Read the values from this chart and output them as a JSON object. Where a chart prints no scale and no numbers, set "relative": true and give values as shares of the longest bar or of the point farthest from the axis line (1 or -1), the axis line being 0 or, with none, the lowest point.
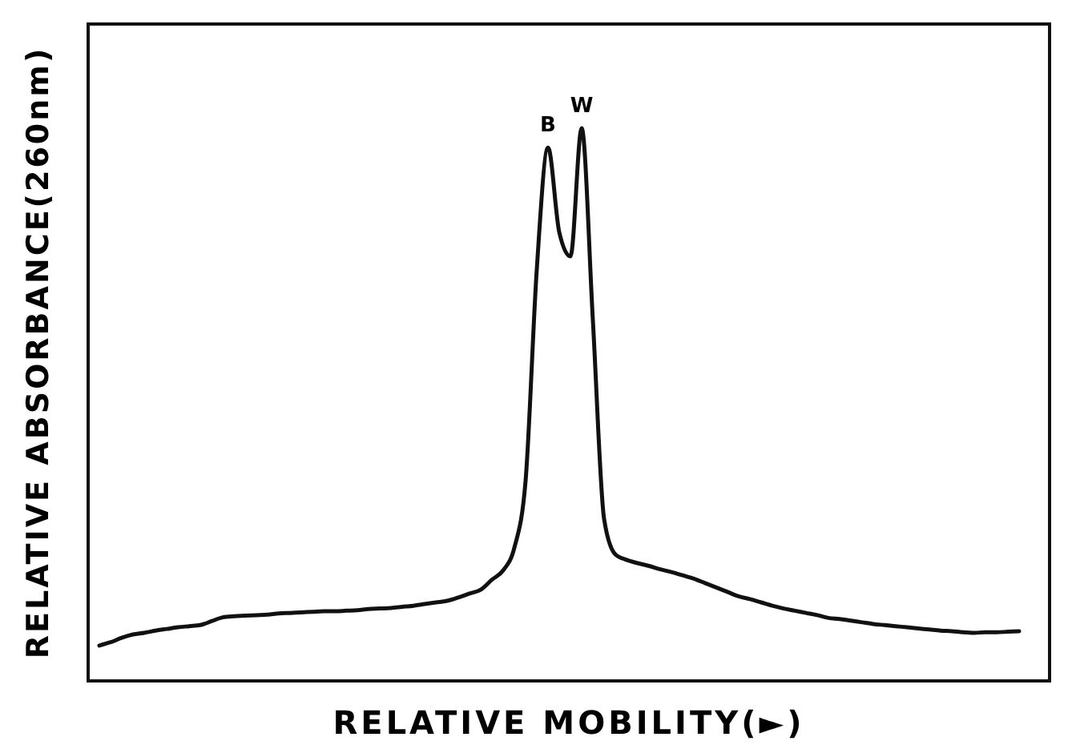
{
  "chart_data": {
    "type": "line",
    "relative": true,
    "xlabel": "RELATIVE MOBILITY(►)",
    "ylabel": "RELATIVE ABSORBANCE(260nm)",
    "categories": [
      null,
      null,
      null,
      null,
      null,
      null,
      null,
      null,
      null,
      null,
      null,
      null,
      null,
      null,
      null,
      null,
      null,
      null,
      null,
      null,
      null,
      null,
      null,
      null,
      null,
      null,
      null,
      null,
      null,
      null,
      null,
      null,
      null,
      null,
      null,
      null,
      null,
      null,
      null,
      null,
      null,
      null,
      null,
      null,
      null,
      null,
      null,
      null,
      null,
      null,
      null,
      null,
      null,
      null,
      null,
      null,
      null,
      null,
      null,
      null,
      null,
      null,
      null,
      null,
      null,
      null,
      null,
      null,
      null,
      null,
      null,
      null,
      null,
      null,
      null,
      null,
      null,
      null,
      null,
      null,
      null,
      null,
      null
    ],
    "series": [
      {
        "color": "#111111",
        "values": [
          0.064,
          0.07,
          0.078,
          0.084,
          0.087,
          0.091,
          0.094,
          0.097,
          0.099,
          0.101,
          0.108,
          0.115,
          0.117,
          0.118,
          0.119,
          0.12,
          0.122,
          0.123,
          0.124,
          0.125,
          0.126,
          0.126,
          0.127,
          0.128,
          0.13,
          0.131,
          0.132,
          0.134,
          0.136,
          0.139,
          0.142,
          0.145,
          0.151,
          0.158,
          0.165,
          0.183,
          0.2,
          0.241,
          0.362,
          0.745,
          0.965,
          0.812,
          0.768,
          1,
          0.652,
          0.293,
          0.229,
          0.219,
          0.213,
          0.208,
          0.202,
          0.197,
          0.191,
          0.185,
          0.177,
          0.169,
          0.161,
          0.153,
          0.148,
          0.142,
          0.136,
          0.131,
          0.127,
          0.123,
          0.119,
          0.114,
          0.112,
          0.109,
          0.106,
          0.103,
          0.101,
          0.099,
          0.097,
          0.095,
          0.093,
          0.091,
          0.09,
          0.088,
          0.087,
          0.088,
          0.088,
          0.089,
          0.09
        ]
      }
    ],
    "annotations": [
      {
        "text": "B",
        "y": 0.965
      },
      {
        "text": "W",
        "y": 1
      }
    ]
  }
}
